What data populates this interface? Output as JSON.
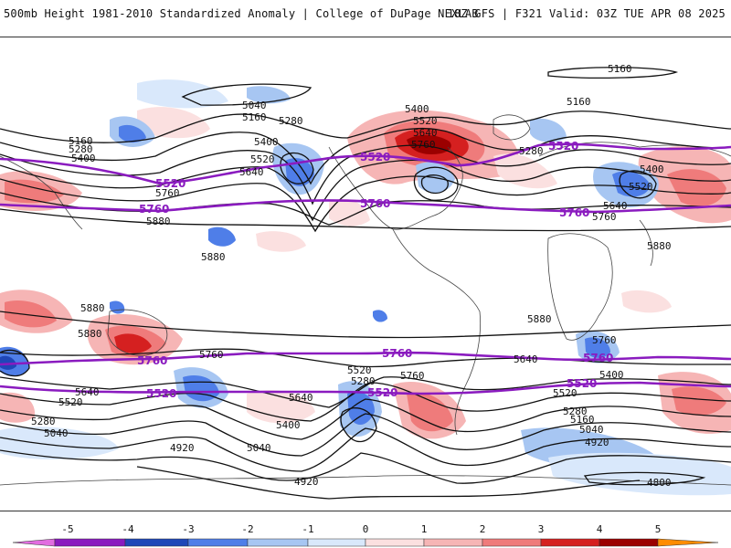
{
  "header": {
    "title": "500mb Height 1981-2010 Standardized Anomaly | College of DuPage NEXLAB",
    "run_info": "18Z GFS | F321 Valid: 03Z TUE APR 08 2025"
  },
  "colors": {
    "neg5": "#e26de0",
    "neg4": "#8a1bbf",
    "neg3": "#1f47b8",
    "neg2": "#4f7ee8",
    "neg1": "#a7c6f2",
    "neg0": "#d9e8fb",
    "pos0": "#fbe0e0",
    "pos1": "#f6b5b5",
    "pos2": "#ef7b7b",
    "pos3": "#d52020",
    "pos4": "#9b0000",
    "pos5": "#ff8c00",
    "purple_contour": "#8a1bbf",
    "black_contour": "#111111"
  },
  "colorbar": {
    "ticks": [
      "-5",
      "-4",
      "-3",
      "-2",
      "-1",
      "0",
      "1",
      "2",
      "3",
      "4",
      "5"
    ]
  },
  "contour_labels": [
    {
      "id": "c5160a",
      "text": "5160"
    },
    {
      "id": "c5160b",
      "text": "5160"
    },
    {
      "id": "c5040a",
      "text": "5040"
    },
    {
      "id": "c5160c",
      "text": "5160"
    },
    {
      "id": "c5280a",
      "text": "5280"
    },
    {
      "id": "c5400a",
      "text": "5400"
    },
    {
      "id": "c5520a",
      "text": "5520"
    },
    {
      "id": "c5640a",
      "text": "5640"
    },
    {
      "id": "c5760a",
      "text": "5760"
    },
    {
      "id": "c5880a",
      "text": "5880"
    },
    {
      "id": "c5160d",
      "text": "5160"
    },
    {
      "id": "c5280b",
      "text": "5280"
    },
    {
      "id": "c5400b",
      "text": "5400"
    },
    {
      "id": "c5400c",
      "text": "5400"
    },
    {
      "id": "c5520b",
      "text": "5520"
    },
    {
      "id": "c5640b",
      "text": "5640"
    },
    {
      "id": "c5760b",
      "text": "5760"
    },
    {
      "id": "c5280c",
      "text": "5280"
    },
    {
      "id": "c5400d",
      "text": "5400"
    },
    {
      "id": "c5520c",
      "text": "5520"
    },
    {
      "id": "c5640c",
      "text": "5640"
    },
    {
      "id": "c5760c",
      "text": "5760"
    },
    {
      "id": "c5880b",
      "text": "5880"
    },
    {
      "id": "c5880c",
      "text": "5880"
    },
    {
      "id": "c5880d",
      "text": "5880"
    },
    {
      "id": "c5880e",
      "text": "5880"
    },
    {
      "id": "c5760d",
      "text": "5760"
    },
    {
      "id": "c5640d",
      "text": "5640"
    },
    {
      "id": "c5520d",
      "text": "5520"
    },
    {
      "id": "c5280d",
      "text": "5280"
    },
    {
      "id": "c5040b",
      "text": "5040"
    },
    {
      "id": "c4920a",
      "text": "4920"
    },
    {
      "id": "c5040c",
      "text": "5040"
    },
    {
      "id": "c5400e",
      "text": "5400"
    },
    {
      "id": "c5640e",
      "text": "5640"
    },
    {
      "id": "c5520e",
      "text": "5520"
    },
    {
      "id": "c5280e",
      "text": "5280"
    },
    {
      "id": "c4920b",
      "text": "4920"
    },
    {
      "id": "c5760e",
      "text": "5760"
    },
    {
      "id": "c5640f",
      "text": "5640"
    },
    {
      "id": "c5520f",
      "text": "5520"
    },
    {
      "id": "c5280f",
      "text": "5280"
    },
    {
      "id": "c5160e",
      "text": "5160"
    },
    {
      "id": "c5040d",
      "text": "5040"
    },
    {
      "id": "c4920c",
      "text": "4920"
    },
    {
      "id": "c4800a",
      "text": "4800"
    },
    {
      "id": "c5400f",
      "text": "5400"
    },
    {
      "id": "c5760f",
      "text": "5760"
    },
    {
      "id": "c5880f",
      "text": "5880"
    }
  ],
  "purple_labels": [
    {
      "id": "p5520a",
      "text": "5520"
    },
    {
      "id": "p5760a",
      "text": "5760"
    },
    {
      "id": "p5520b",
      "text": "5520"
    },
    {
      "id": "p5760b",
      "text": "5760"
    },
    {
      "id": "p5520c",
      "text": "5520"
    },
    {
      "id": "p5760c",
      "text": "5760"
    },
    {
      "id": "p5760d",
      "text": "5760"
    },
    {
      "id": "p5520d",
      "text": "5520"
    },
    {
      "id": "p5760e",
      "text": "5760"
    },
    {
      "id": "p5520e",
      "text": "5520"
    },
    {
      "id": "p5760f",
      "text": "5760"
    },
    {
      "id": "p5520f",
      "text": "5520"
    }
  ]
}
